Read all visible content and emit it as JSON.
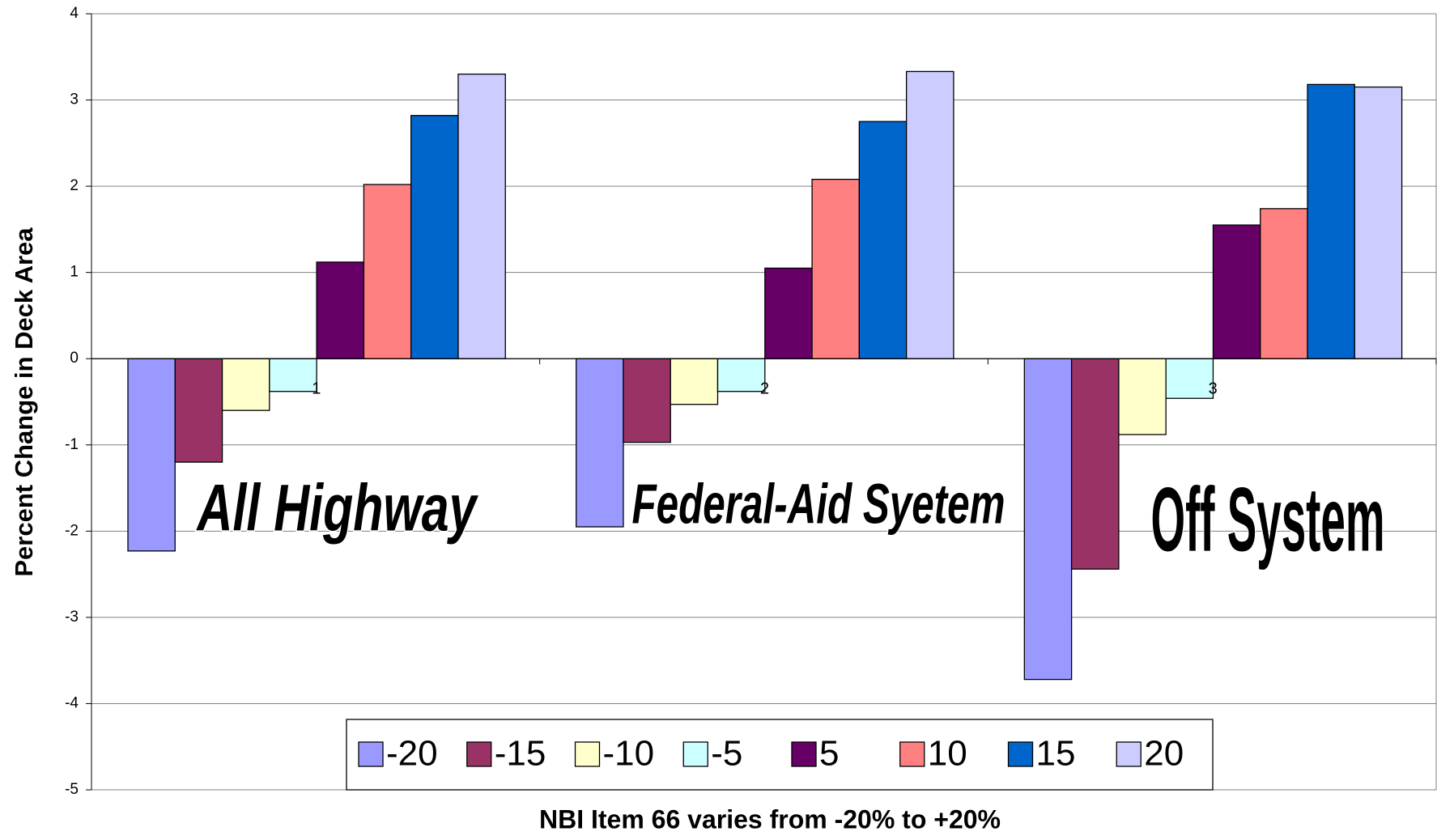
{
  "chart_data": {
    "type": "bar",
    "ylabel": "Percent Change in Deck Area",
    "xlabel": "NBI Item 66 varies from -20% to +20%",
    "categories": [
      "1",
      "2",
      "3"
    ],
    "series": [
      {
        "name": "-20",
        "color": "#9999FF",
        "values": [
          -2.23,
          -1.95,
          -3.72
        ]
      },
      {
        "name": "-15",
        "color": "#993366",
        "values": [
          -1.2,
          -0.97,
          -2.44
        ]
      },
      {
        "name": "-10",
        "color": "#FFFFCC",
        "values": [
          -0.6,
          -0.53,
          -0.88
        ]
      },
      {
        "name": "-5",
        "color": "#CCFFFF",
        "values": [
          -0.38,
          -0.38,
          -0.46
        ]
      },
      {
        "name": "5",
        "color": "#660066",
        "values": [
          1.12,
          1.05,
          1.55
        ]
      },
      {
        "name": "10",
        "color": "#FF8080",
        "values": [
          2.02,
          2.08,
          1.74
        ]
      },
      {
        "name": "15",
        "color": "#0066CC",
        "values": [
          2.82,
          2.75,
          3.18
        ]
      },
      {
        "name": "20",
        "color": "#CCCCFF",
        "values": [
          3.3,
          3.33,
          3.15
        ]
      }
    ],
    "annotations": [
      "All Highway",
      "Federal-Aid Syetem",
      "Off System"
    ],
    "ylim": [
      -5,
      4
    ],
    "yticks": [
      -5,
      -4,
      -3,
      -2,
      -1,
      0,
      1,
      2,
      3,
      4
    ],
    "grid": true,
    "legend": "bottom"
  }
}
